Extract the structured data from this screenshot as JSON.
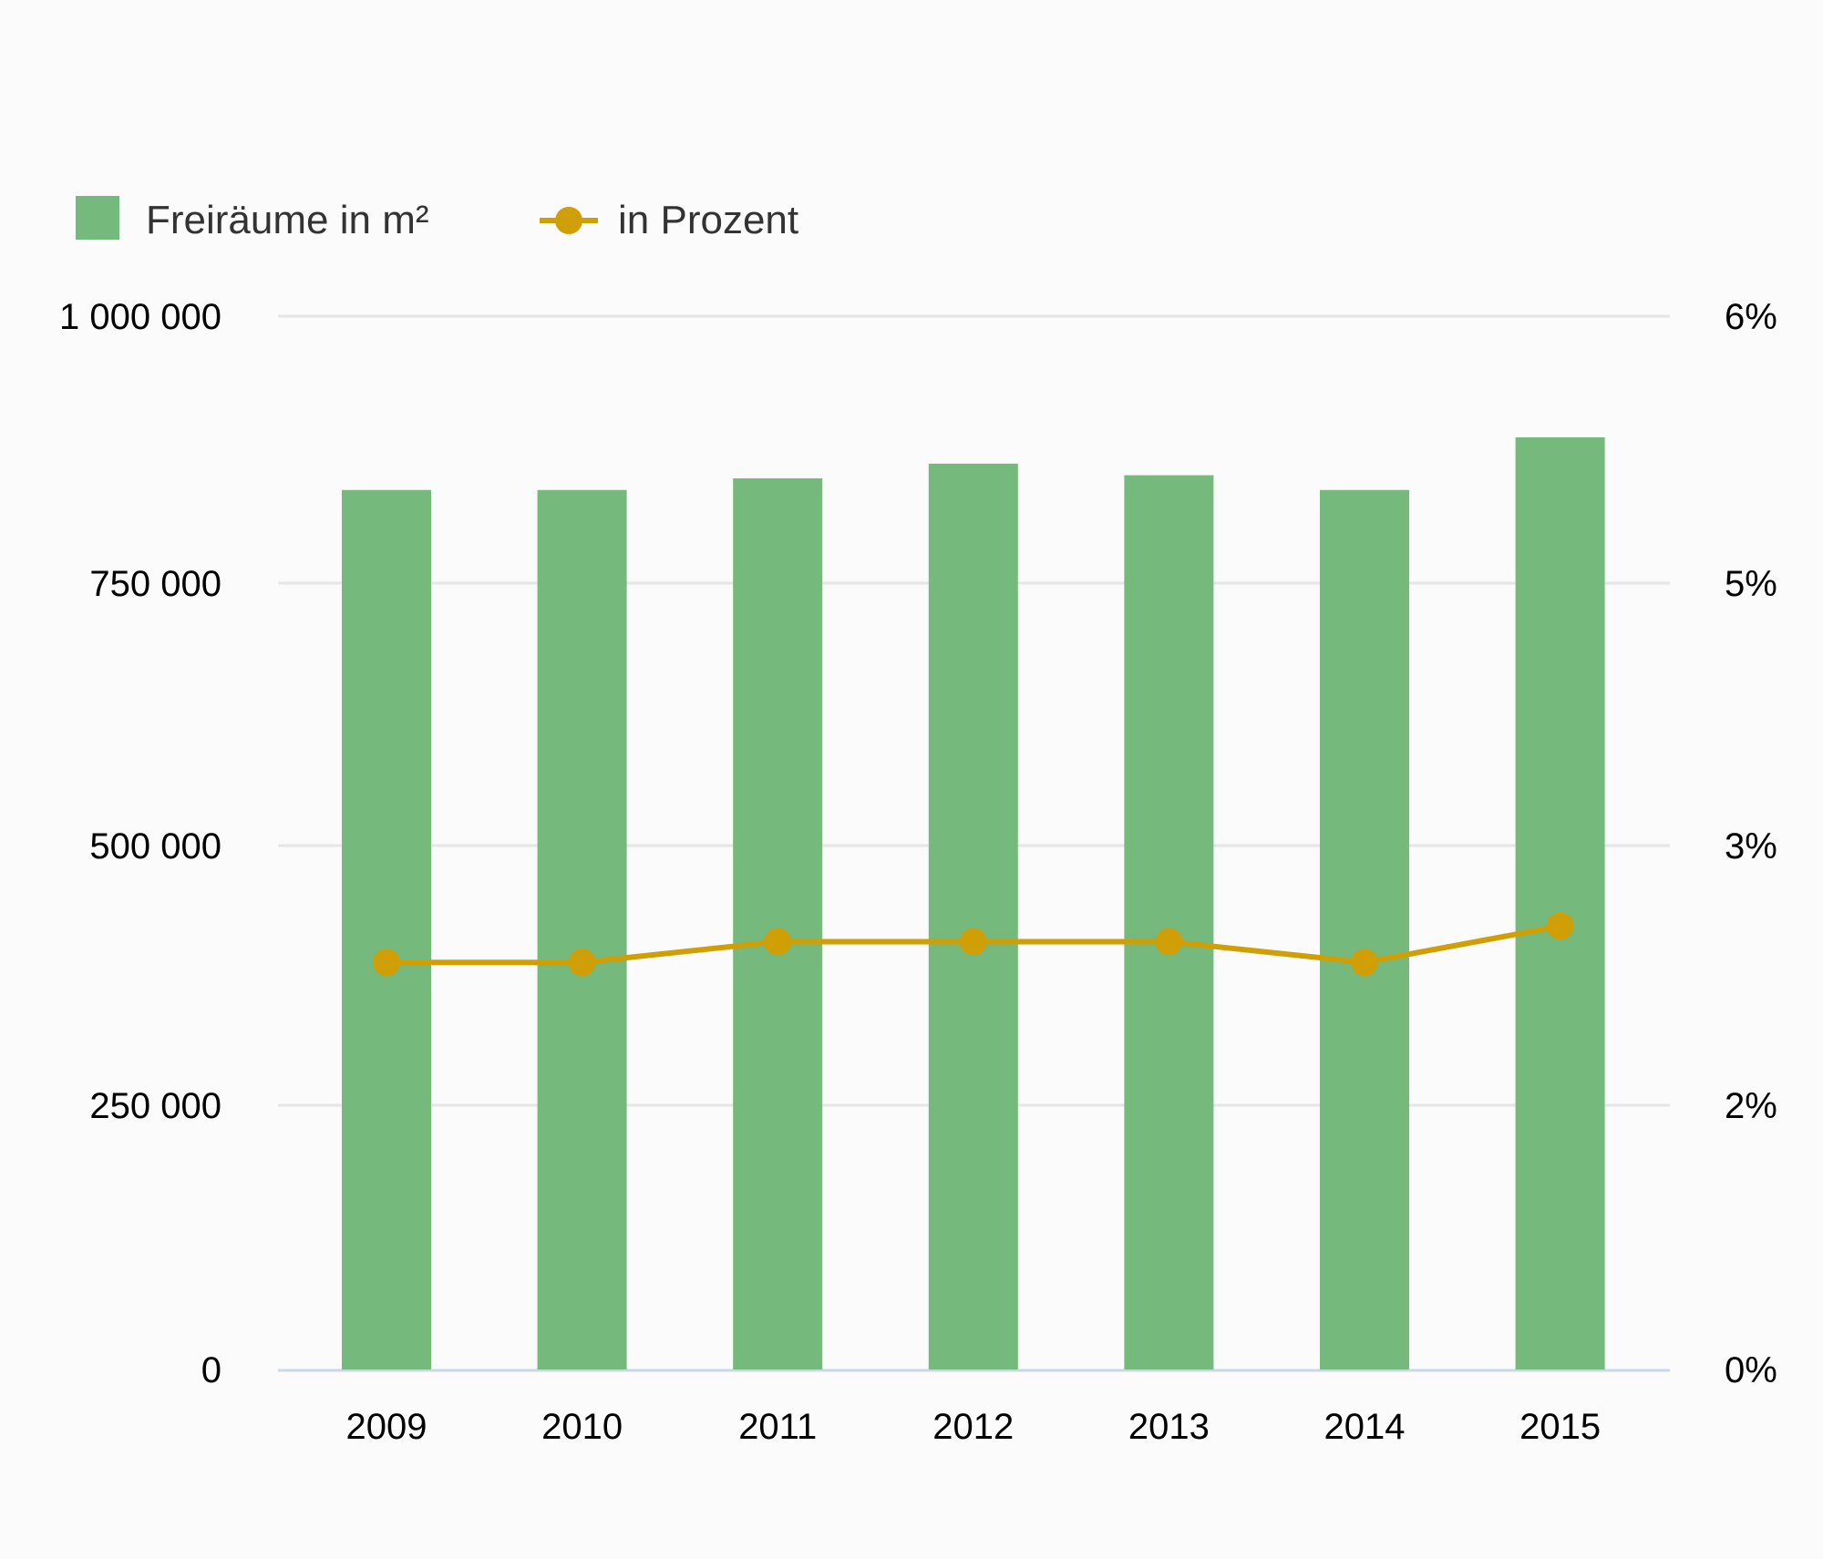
{
  "chart_data": {
    "type": "bar",
    "categories": [
      "2009",
      "2010",
      "2011",
      "2012",
      "2013",
      "2014",
      "2015"
    ],
    "series": [
      {
        "name": "Freiräume in m²",
        "type": "bar",
        "axis": "left",
        "color": "#76b97c",
        "values": [
          835000,
          835000,
          846000,
          860000,
          849000,
          835000,
          885000
        ]
      },
      {
        "name": "in Prozent",
        "type": "line",
        "axis": "right",
        "color": "#d09e05",
        "values": [
          2.55,
          2.55,
          2.63,
          2.63,
          2.63,
          2.55,
          2.69
        ]
      }
    ],
    "y_left": {
      "ticks": [
        0,
        250000,
        500000,
        750000,
        1000000
      ],
      "tick_labels": [
        "0",
        "250 000",
        "500 000",
        "750 000",
        "1 000 000"
      ],
      "ylim": [
        0,
        1000000
      ]
    },
    "y_right": {
      "ticks": [
        0,
        2,
        3,
        5,
        6
      ],
      "tick_labels": [
        "0%",
        "2%",
        "3%",
        "5%",
        "6%"
      ]
    },
    "grid": true,
    "legend_position": "top-left",
    "colors": {
      "grid": "#e6e6e6",
      "baseline": "#ccd6eb"
    }
  }
}
